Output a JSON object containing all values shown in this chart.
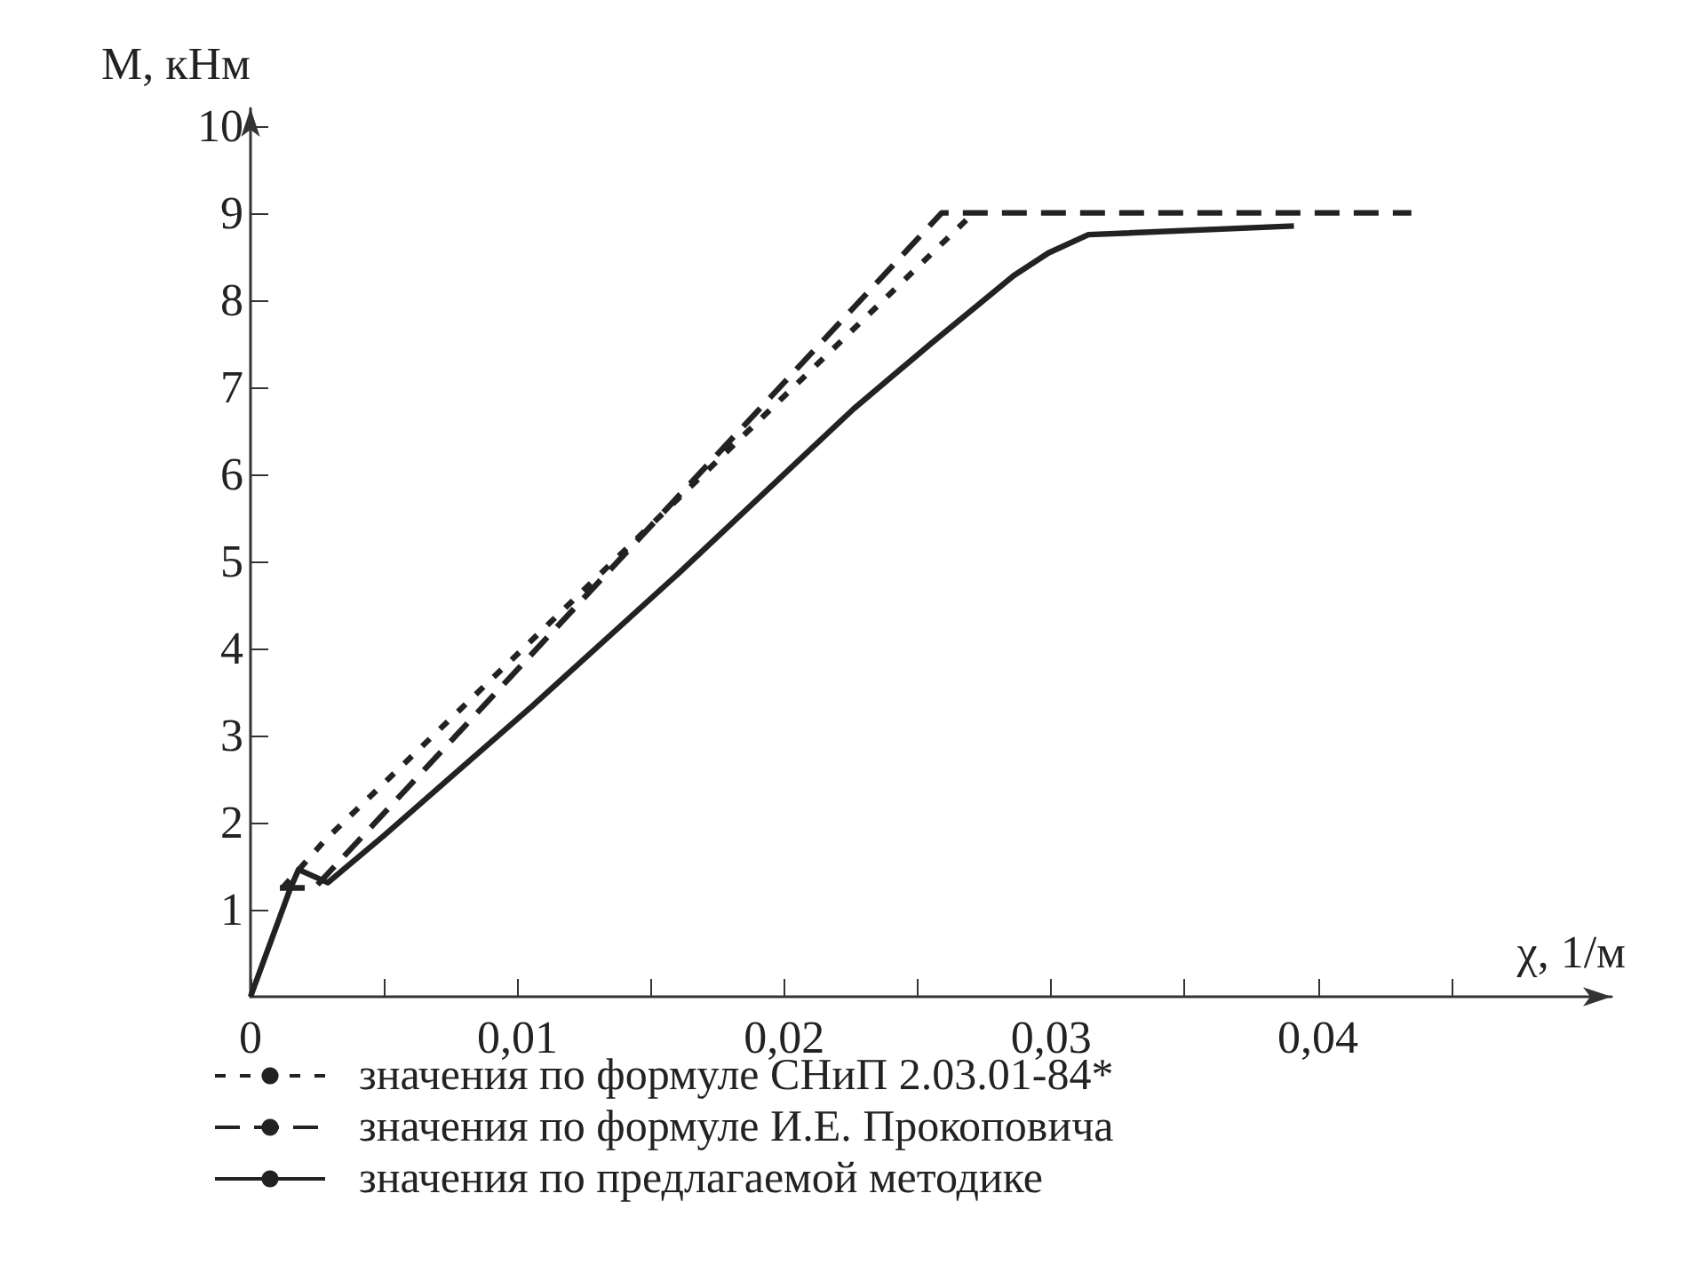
{
  "chart_data": {
    "type": "line",
    "xlabel": "χ, 1/м",
    "ylabel": "M, кНм",
    "xlim": [
      0,
      0.051
    ],
    "ylim": [
      0,
      10.2
    ],
    "xticks": [
      {
        "value": 0,
        "label": "0"
      },
      {
        "value": 0.005,
        "label": null
      },
      {
        "value": 0.01,
        "label": "0,01"
      },
      {
        "value": 0.015,
        "label": null
      },
      {
        "value": 0.02,
        "label": "0,02"
      },
      {
        "value": 0.025,
        "label": null
      },
      {
        "value": 0.03,
        "label": "0,03"
      },
      {
        "value": 0.035,
        "label": null
      },
      {
        "value": 0.04,
        "label": "0,04"
      },
      {
        "value": 0.045,
        "label": null
      }
    ],
    "yticks": [
      1,
      2,
      3,
      4,
      5,
      6,
      7,
      8,
      9,
      10
    ],
    "grid": false,
    "legend": "bottom",
    "marker": "none",
    "series": [
      {
        "name": "значения по формуле СНиП 2.03.01-84*",
        "color": "#222222",
        "line_style": "dotted",
        "x": [
          0.0012,
          0.0028,
          0.0271
        ],
        "values": [
          1.25,
          1.8,
          9.0
        ]
      },
      {
        "name": "значения по формуле И.Е. Прокоповича",
        "color": "#222222",
        "line_style": "dashed",
        "x": [
          0.0011,
          0.0024,
          0.0259,
          0.0435
        ],
        "values": [
          1.25,
          1.25,
          9.0,
          9.0
        ]
      },
      {
        "name": "значения по предлагаемой методике",
        "color": "#222222",
        "line_style": "solid",
        "x": [
          0,
          0.0015,
          0.0018,
          0.0029,
          0.005,
          0.0106,
          0.016,
          0.0226,
          0.0255,
          0.0286,
          0.0299,
          0.0314,
          0.0391
        ],
        "values": [
          0,
          1.25,
          1.46,
          1.31,
          1.85,
          3.35,
          4.85,
          6.75,
          7.5,
          8.28,
          8.54,
          8.75,
          8.85
        ]
      }
    ]
  }
}
